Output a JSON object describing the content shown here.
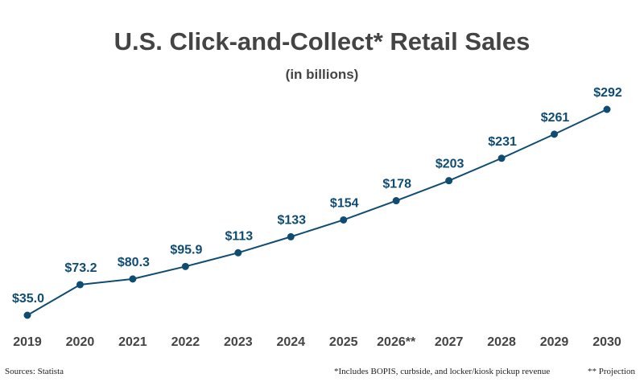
{
  "chart_data": {
    "type": "line",
    "title": "U.S. Click-and-Collect* Retail Sales",
    "subtitle": "(in billions)",
    "categories": [
      "2019",
      "2020",
      "2021",
      "2022",
      "2023",
      "2024",
      "2025",
      "2026**",
      "2027",
      "2028",
      "2029",
      "2030"
    ],
    "values": [
      35.0,
      73.2,
      80.3,
      95.9,
      113,
      133,
      154,
      178,
      203,
      231,
      261,
      292
    ],
    "value_labels": [
      "$35.0",
      "$73.2",
      "$80.3",
      "$95.9",
      "$113",
      "$133",
      "$154",
      "$178",
      "$203",
      "$231",
      "$261",
      "$292"
    ],
    "color": "#0f4c72",
    "source": "Sources: Statista",
    "notes": [
      "*Includes BOPIS, curbside, and locker/kiosk pickup revenue",
      "** Projection"
    ]
  }
}
